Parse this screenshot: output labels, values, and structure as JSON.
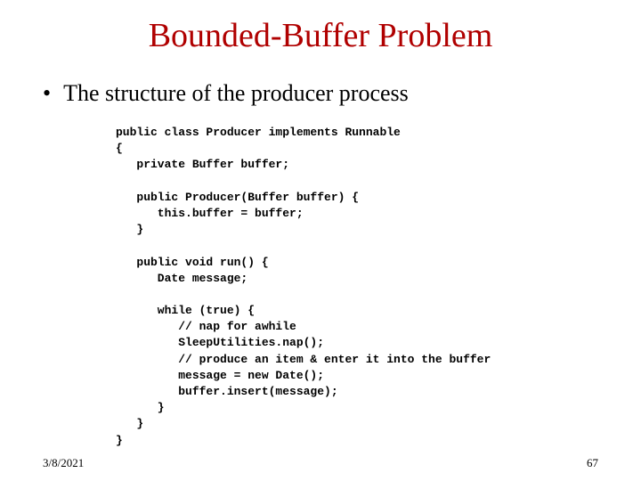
{
  "title": {
    "text": "Bounded-Buffer Problem",
    "color": "#b00000",
    "fontsize": 38
  },
  "bullet": {
    "marker": "•",
    "text": "The structure of the producer process",
    "color": "#000000",
    "fontsize": 26
  },
  "code": {
    "lines": [
      "public class Producer implements Runnable",
      "{",
      "   private Buffer buffer;",
      "",
      "   public Producer(Buffer buffer) {",
      "      this.buffer = buffer;",
      "   }",
      "",
      "   public void run() {",
      "      Date message;",
      "",
      "      while (true) {",
      "         // nap for awhile",
      "         SleepUtilities.nap();",
      "         // produce an item & enter it into the buffer",
      "         message = new Date();",
      "         buffer.insert(message);",
      "      }",
      "   }",
      "}"
    ],
    "fontsize": 13,
    "font_family": "Courier New",
    "color": "#000000"
  },
  "footer": {
    "date": "3/8/2021",
    "page": "67",
    "fontsize": 13,
    "color": "#000000"
  },
  "background_color": "#ffffff"
}
